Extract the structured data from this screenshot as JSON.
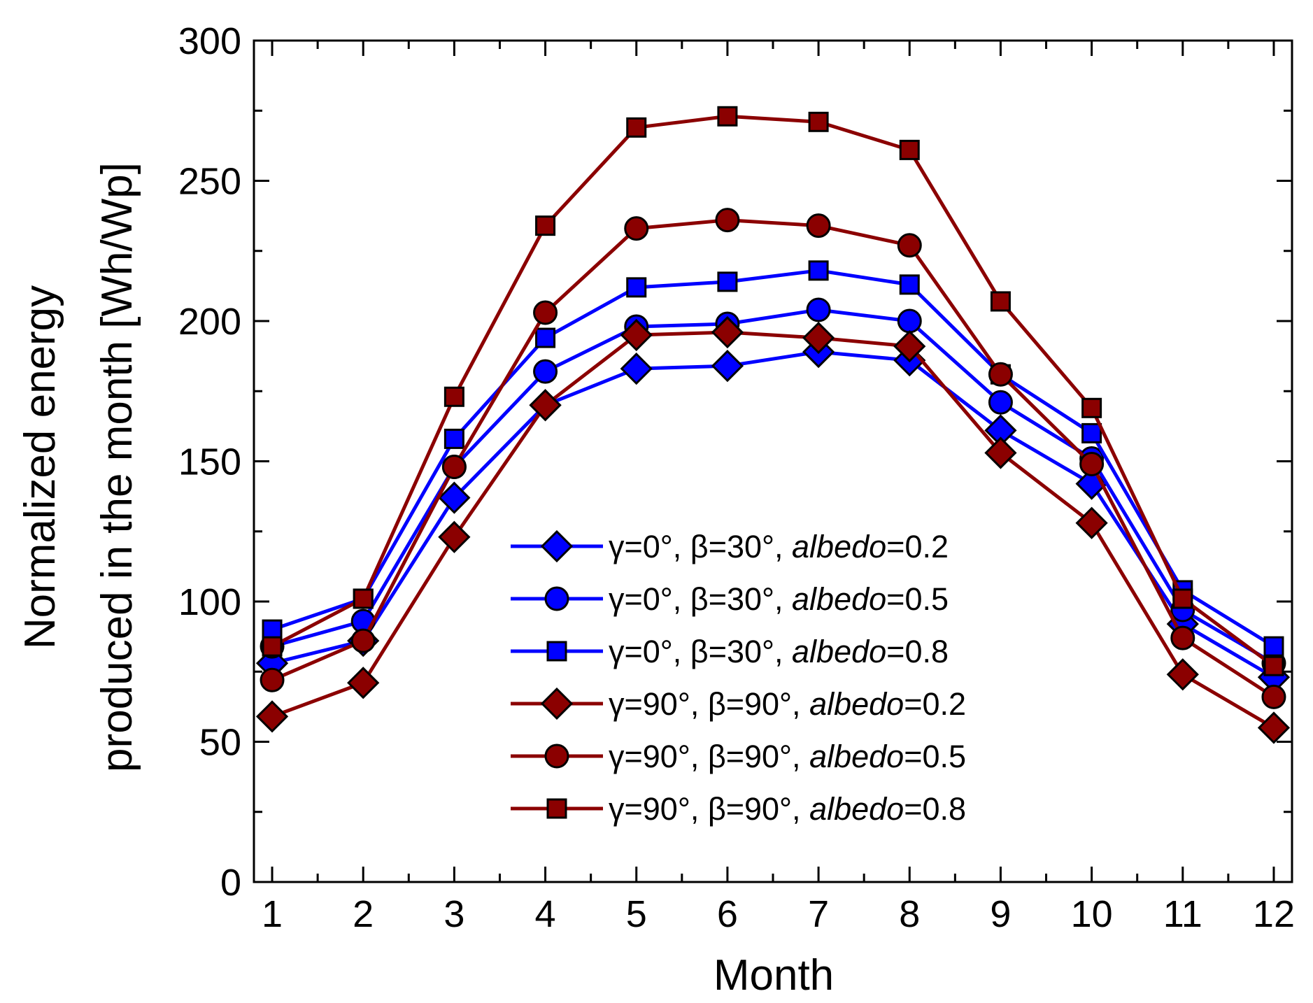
{
  "chart_data": {
    "type": "line",
    "xlabel": "Month",
    "ylabel_line1": "Normalized energy",
    "ylabel_line2": "produced in the month [Wh/Wp]",
    "xlim": [
      0.8,
      12.2
    ],
    "ylim": [
      0,
      300
    ],
    "x_ticks": [
      1,
      2,
      3,
      4,
      5,
      6,
      7,
      8,
      9,
      10,
      11,
      12
    ],
    "y_ticks": [
      0,
      50,
      100,
      150,
      200,
      250,
      300
    ],
    "x": [
      1,
      2,
      3,
      4,
      5,
      6,
      7,
      8,
      9,
      10,
      11,
      12
    ],
    "grid": false,
    "legend_position": "bottom-right",
    "series": [
      {
        "id": "s1",
        "name_prefix": "γ=0°, β=30°, ",
        "name_italic": "albedo",
        "name_suffix": "=0.2",
        "marker": "diamond",
        "color": "#0000ff",
        "values": [
          78,
          86,
          137,
          170,
          183,
          184,
          189,
          186,
          161,
          142,
          92,
          73
        ]
      },
      {
        "id": "s2",
        "name_prefix": "γ=0°, β=30°, ",
        "name_italic": "albedo",
        "name_suffix": "=0.5",
        "marker": "circle",
        "color": "#0000ff",
        "values": [
          84,
          93,
          148,
          182,
          198,
          199,
          204,
          200,
          171,
          151,
          97,
          78
        ]
      },
      {
        "id": "s3",
        "name_prefix": "γ=0°, β=30°, ",
        "name_italic": "albedo",
        "name_suffix": "=0.8",
        "marker": "square",
        "color": "#0000ff",
        "values": [
          90,
          101,
          158,
          194,
          212,
          214,
          218,
          213,
          181,
          160,
          104,
          84
        ]
      },
      {
        "id": "s4",
        "name_prefix": "γ=90°, β=90°, ",
        "name_italic": "albedo",
        "name_suffix": "=0.2",
        "marker": "diamond",
        "color": "#8b0000",
        "values": [
          59,
          71,
          123,
          170,
          195,
          196,
          194,
          191,
          153,
          128,
          74,
          55
        ]
      },
      {
        "id": "s5",
        "name_prefix": "γ=90°, β=90°, ",
        "name_italic": "albedo",
        "name_suffix": "=0.5",
        "marker": "circle",
        "color": "#8b0000",
        "values": [
          72,
          86,
          148,
          203,
          233,
          236,
          234,
          227,
          181,
          149,
          87,
          66
        ]
      },
      {
        "id": "s6",
        "name_prefix": "γ=90°, β=90°, ",
        "name_italic": "albedo",
        "name_suffix": "=0.8",
        "marker": "square",
        "color": "#8b0000",
        "values": [
          84,
          101,
          173,
          234,
          269,
          273,
          271,
          261,
          207,
          169,
          101,
          77
        ]
      }
    ]
  }
}
